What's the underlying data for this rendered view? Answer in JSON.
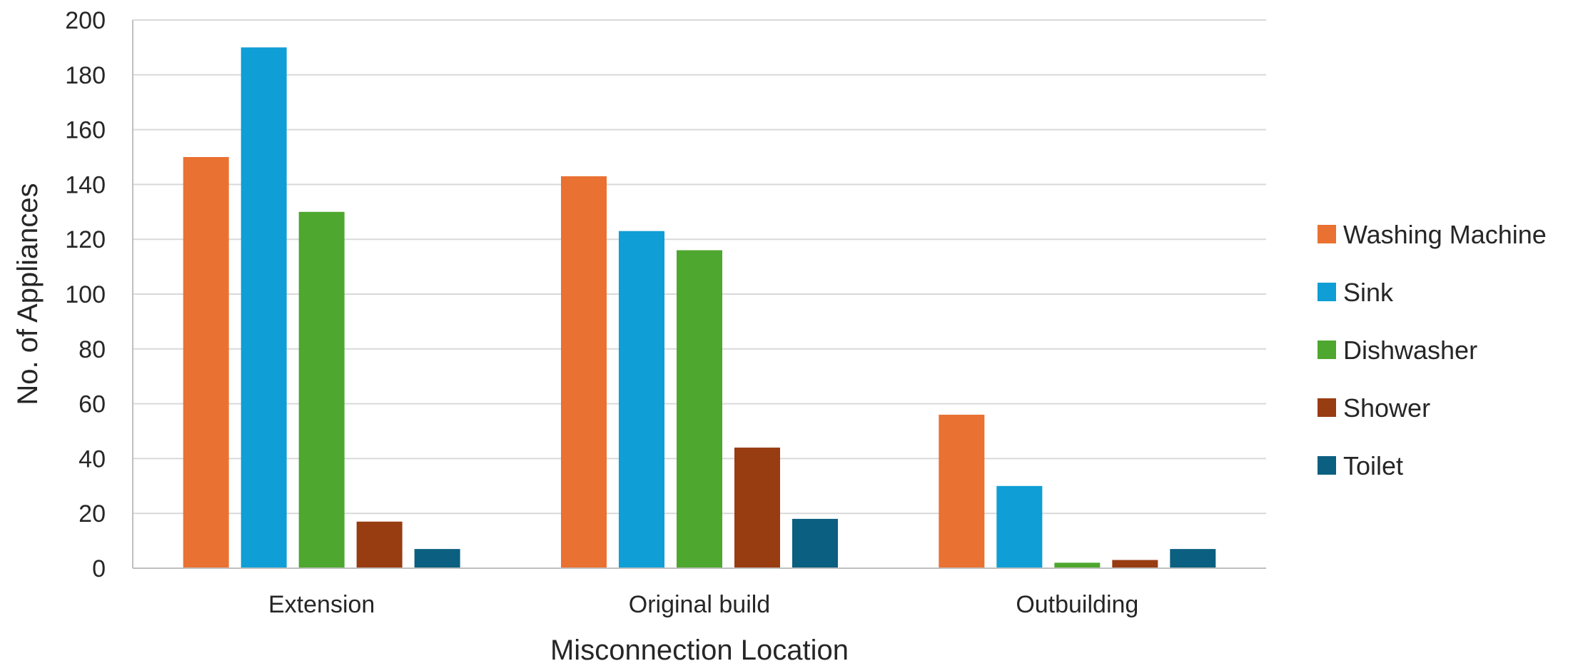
{
  "chart_data": {
    "type": "bar",
    "title": "",
    "xlabel": "Misconnection Location",
    "ylabel": "No. of Appliances",
    "ylim": [
      0,
      200
    ],
    "yticks": [
      0,
      20,
      40,
      60,
      80,
      100,
      120,
      140,
      160,
      180,
      200
    ],
    "grid": true,
    "legend_position": "right",
    "categories": [
      "Extension",
      "Original build",
      "Outbuilding"
    ],
    "series": [
      {
        "name": "Washing Machine",
        "color": "#E97132",
        "values": [
          150,
          143,
          56
        ]
      },
      {
        "name": "Sink",
        "color": "#0F9ED5",
        "values": [
          190,
          123,
          30
        ]
      },
      {
        "name": "Dishwasher",
        "color": "#4EA72E",
        "values": [
          130,
          116,
          2
        ]
      },
      {
        "name": "Shower",
        "color": "#983C11",
        "values": [
          17,
          44,
          3
        ]
      },
      {
        "name": "Toilet",
        "color": "#0B5F80",
        "values": [
          7,
          18,
          7
        ]
      }
    ]
  }
}
